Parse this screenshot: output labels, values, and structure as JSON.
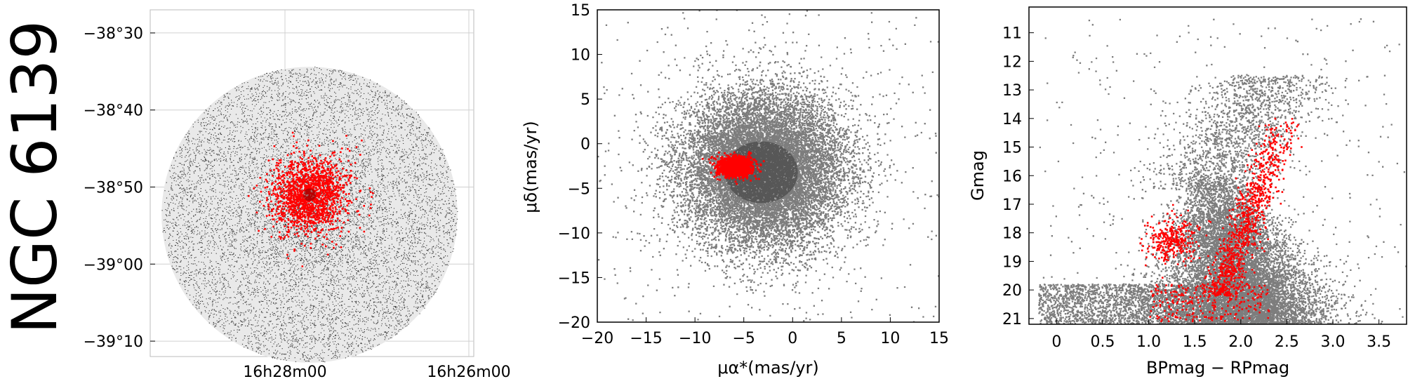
{
  "side_title": "NGC 6139",
  "chart_data": [
    {
      "type": "scatter",
      "name": "sky",
      "xlabel": "",
      "ylabel": "",
      "y_ticks": [
        -38.5,
        -38.6667,
        -38.8333,
        -39.0,
        -39.1667
      ],
      "y_tick_labels": [
        "−38°30",
        "−38°40",
        "−38°50",
        "−39°00",
        "−39°10"
      ],
      "x_tick_labels": [
        "16h28m00",
        "16h26m00"
      ],
      "field_radius_deg": 0.32,
      "cluster_center_dec": -38.85,
      "field_color": "#000000",
      "member_color": "#ff0000",
      "grid": true
    },
    {
      "type": "scatter",
      "name": "proper-motion",
      "xlabel": "μα*(mas/yr)",
      "ylabel": "μδ(mas/yr)",
      "xlim": [
        -20,
        15
      ],
      "ylim": [
        -20,
        15
      ],
      "x_ticks": [
        -20,
        -15,
        -10,
        -5,
        0,
        5,
        10,
        15
      ],
      "y_ticks": [
        -20,
        -15,
        -10,
        -5,
        0,
        5,
        10,
        15
      ],
      "field_center": [
        -3,
        -3
      ],
      "cluster_center": [
        -6,
        -2.6
      ],
      "field_color": "#666666",
      "member_color": "#ff0000"
    },
    {
      "type": "scatter",
      "name": "cmd",
      "xlabel": "BPmag − RPmag",
      "ylabel": "Gmag",
      "xlim": [
        -0.3,
        3.8
      ],
      "ylim": [
        21.2,
        10.1
      ],
      "x_ticks": [
        0,
        0.5,
        1.0,
        1.5,
        2.0,
        2.5,
        3.0,
        3.5
      ],
      "x_tick_labels": [
        "0",
        "0.5",
        "1.0",
        "1.5",
        "2.0",
        "2.5",
        "3.0",
        "3.5"
      ],
      "y_ticks": [
        11,
        12,
        13,
        14,
        15,
        16,
        17,
        18,
        19,
        20,
        21
      ],
      "field_color": "#666666",
      "member_color": "#ff0000"
    }
  ]
}
